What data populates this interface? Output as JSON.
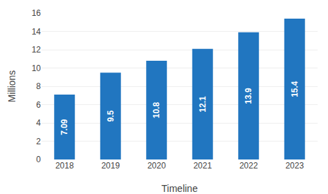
{
  "chart_data": {
    "type": "bar",
    "categories": [
      "2018",
      "2019",
      "2020",
      "2021",
      "2022",
      "2023"
    ],
    "values": [
      7.09,
      9.5,
      10.8,
      12.1,
      13.9,
      15.4
    ],
    "color": "#2176c0",
    "xlabel": "Timeline",
    "ylabel": "Millions",
    "ylim": [
      0,
      16
    ],
    "yticks": [
      0,
      2,
      4,
      6,
      8,
      10,
      12,
      14,
      16
    ],
    "grid": true,
    "data_labels": true
  }
}
